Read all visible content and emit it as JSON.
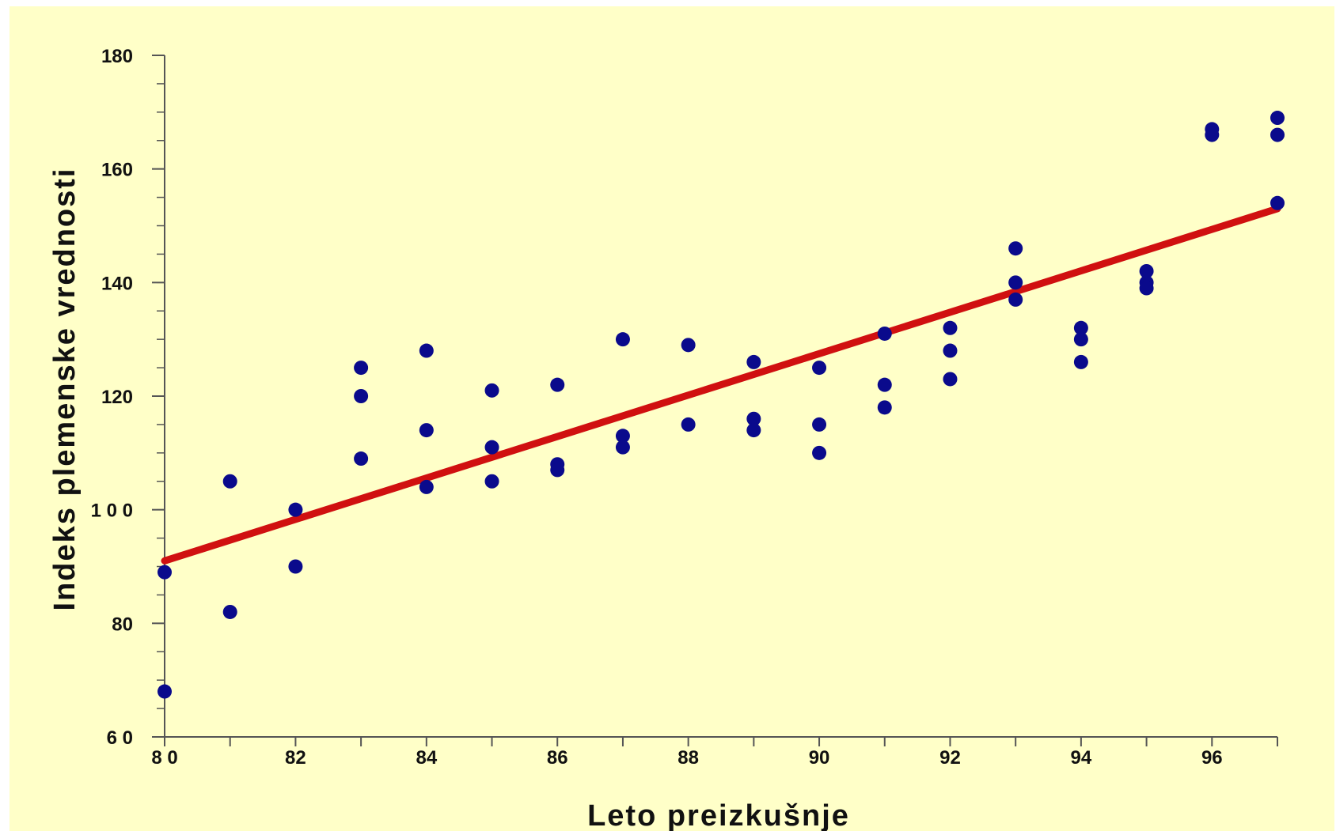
{
  "colors": {
    "background": "#ffffc8",
    "points": "#0a0a8c",
    "trendline": "#d01010",
    "axis": "#555555"
  },
  "chart_data": {
    "type": "scatter",
    "title": "",
    "xlabel": "Leto  preizkušnje",
    "ylabel": "Indeks  plemenske  vrednosti",
    "xlim": [
      80,
      97
    ],
    "ylim": [
      60,
      180
    ],
    "x_tick_labels": [
      {
        "value": 80,
        "label": "8  0"
      },
      {
        "value": 82,
        "label": "82"
      },
      {
        "value": 84,
        "label": "84"
      },
      {
        "value": 86,
        "label": "86"
      },
      {
        "value": 88,
        "label": "88"
      },
      {
        "value": 90,
        "label": "90"
      },
      {
        "value": 92,
        "label": "92"
      },
      {
        "value": 94,
        "label": "94"
      },
      {
        "value": 96,
        "label": "96"
      }
    ],
    "y_tick_labels": [
      {
        "value": 60,
        "label": "6  0"
      },
      {
        "value": 80,
        "label": "80"
      },
      {
        "value": 100,
        "label": "1 0 0"
      },
      {
        "value": 120,
        "label": "120"
      },
      {
        "value": 140,
        "label": "140"
      },
      {
        "value": 160,
        "label": "160"
      },
      {
        "value": 180,
        "label": "180"
      }
    ],
    "y_minor_step": 5,
    "grid": false,
    "points": [
      {
        "x": 80,
        "y": 89
      },
      {
        "x": 80,
        "y": 68
      },
      {
        "x": 81,
        "y": 105
      },
      {
        "x": 81,
        "y": 82
      },
      {
        "x": 82,
        "y": 100
      },
      {
        "x": 82,
        "y": 90
      },
      {
        "x": 83,
        "y": 125
      },
      {
        "x": 83,
        "y": 120
      },
      {
        "x": 83,
        "y": 109
      },
      {
        "x": 84,
        "y": 128
      },
      {
        "x": 84,
        "y": 114
      },
      {
        "x": 84,
        "y": 104
      },
      {
        "x": 85,
        "y": 121
      },
      {
        "x": 85,
        "y": 111
      },
      {
        "x": 85,
        "y": 105
      },
      {
        "x": 86,
        "y": 122
      },
      {
        "x": 86,
        "y": 108
      },
      {
        "x": 86,
        "y": 107
      },
      {
        "x": 87,
        "y": 130
      },
      {
        "x": 87,
        "y": 113
      },
      {
        "x": 87,
        "y": 111
      },
      {
        "x": 88,
        "y": 129
      },
      {
        "x": 88,
        "y": 115
      },
      {
        "x": 89,
        "y": 126
      },
      {
        "x": 89,
        "y": 116
      },
      {
        "x": 89,
        "y": 114
      },
      {
        "x": 90,
        "y": 125
      },
      {
        "x": 90,
        "y": 115
      },
      {
        "x": 90,
        "y": 110
      },
      {
        "x": 91,
        "y": 131
      },
      {
        "x": 91,
        "y": 122
      },
      {
        "x": 91,
        "y": 118
      },
      {
        "x": 92,
        "y": 132
      },
      {
        "x": 92,
        "y": 128
      },
      {
        "x": 92,
        "y": 123
      },
      {
        "x": 93,
        "y": 146
      },
      {
        "x": 93,
        "y": 140
      },
      {
        "x": 93,
        "y": 137
      },
      {
        "x": 94,
        "y": 132
      },
      {
        "x": 94,
        "y": 130
      },
      {
        "x": 94,
        "y": 126
      },
      {
        "x": 95,
        "y": 142
      },
      {
        "x": 95,
        "y": 140
      },
      {
        "x": 95,
        "y": 139
      },
      {
        "x": 96,
        "y": 167
      },
      {
        "x": 96,
        "y": 166
      },
      {
        "x": 97,
        "y": 169
      },
      {
        "x": 97,
        "y": 166
      },
      {
        "x": 97,
        "y": 154
      }
    ],
    "trendline": {
      "x": [
        80,
        97
      ],
      "y": [
        91,
        153
      ]
    }
  }
}
